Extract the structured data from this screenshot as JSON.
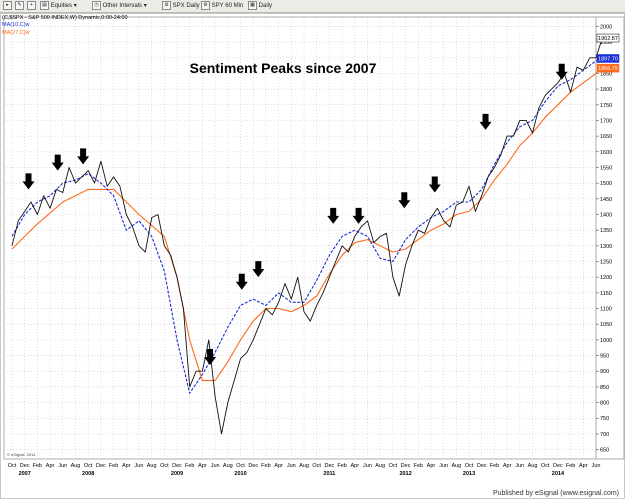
{
  "toolbar": {
    "items": [
      {
        "label": "Equities",
        "icon": "folder-icon"
      },
      {
        "label": "Other Intervals",
        "icon": "clock-icon"
      },
      {
        "label": "SPX Daily",
        "icon": "gear-icon"
      },
      {
        "label": "SPY 60 Min",
        "icon": "gear-icon"
      },
      {
        "label": "Daily",
        "icon": "calendar-icon"
      }
    ]
  },
  "legend": {
    "symbol": "(C,$SPX - S&P 500 INDEX,W) Dynamic,0:00-24:00",
    "ma1": "MA(10,C)w",
    "ma2": "MA(27,C)w"
  },
  "footer": {
    "published": "Published by eSignal (www.esignal.com)",
    "copyright": "© eSignal, 2014"
  },
  "colors": {
    "price": "#111111",
    "ma_fast": "#1a2fd6",
    "ma_slow": "#ff6a1a",
    "grid": "#c9c9c9",
    "marker": "#000000"
  },
  "chart_data": {
    "type": "line",
    "title": "Sentiment Peaks since 2007",
    "y_ticks": [
      650,
      700,
      750,
      800,
      850,
      900,
      950,
      1000,
      1050,
      1100,
      1150,
      1200,
      1250,
      1300,
      1350,
      1400,
      1450,
      1500,
      1550,
      1600,
      1650,
      1700,
      1750,
      1800,
      1850,
      1900,
      1950,
      2000
    ],
    "ylim": [
      620,
      2030
    ],
    "x_month_labels": [
      "Oct",
      "Dec",
      "Feb",
      "Apr",
      "Jun",
      "Aug",
      "Oct",
      "Dec",
      "Feb",
      "Apr",
      "Jun",
      "Aug",
      "Oct",
      "Dec",
      "Feb",
      "Apr",
      "Jun",
      "Aug",
      "Oct",
      "Dec",
      "Feb",
      "Apr",
      "Jun",
      "Aug",
      "Oct",
      "Dec",
      "Feb",
      "Apr",
      "Jun",
      "Aug",
      "Oct",
      "Dec",
      "Feb",
      "Apr",
      "Jun",
      "Aug",
      "Oct",
      "Dec",
      "Feb",
      "Apr",
      "Jun",
      "Aug",
      "Oct",
      "Dec",
      "Feb",
      "Apr",
      "Jun"
    ],
    "x_year_labels": [
      {
        "label": "2007",
        "month_index": 1
      },
      {
        "label": "2008",
        "month_index": 6
      },
      {
        "label": "2009",
        "month_index": 13
      },
      {
        "label": "2010",
        "month_index": 18
      },
      {
        "label": "2011",
        "month_index": 25
      },
      {
        "label": "2012",
        "month_index": 31
      },
      {
        "label": "2013",
        "month_index": 36
      },
      {
        "label": "2014",
        "month_index": 43
      }
    ],
    "last_values": {
      "price": "1962.87",
      "ma_fast": "1897.70",
      "ma_slow": "1866.75"
    },
    "series": [
      {
        "name": "$SPX",
        "style": "price",
        "x": [
          0,
          0.5,
          1,
          1.5,
          2,
          2.5,
          3,
          3.5,
          4,
          4.5,
          5,
          5.5,
          6,
          6.5,
          7,
          7.5,
          8,
          8.5,
          9,
          9.5,
          10,
          10.5,
          11,
          11.5,
          12,
          12.5,
          13,
          13.5,
          14,
          14.5,
          15,
          15.5,
          16,
          16.5,
          17,
          17.5,
          18,
          18.5,
          19,
          19.5,
          20,
          20.5,
          21,
          21.5,
          22,
          22.5,
          23,
          23.5,
          24,
          24.5,
          25,
          25.5,
          26,
          26.5,
          27,
          27.5,
          28,
          28.5,
          29,
          29.5,
          30,
          30.5,
          31,
          31.5,
          32,
          32.5,
          33,
          33.5,
          34,
          34.5,
          35,
          35.5,
          36,
          36.5,
          37,
          37.5,
          38,
          38.5,
          39,
          39.5,
          40,
          40.5,
          41,
          41.5,
          42,
          42.5,
          43,
          43.5,
          44,
          44.5,
          45,
          45.5,
          46,
          46.5
        ],
        "values": [
          1300,
          1380,
          1410,
          1440,
          1400,
          1460,
          1420,
          1480,
          1470,
          1550,
          1500,
          1520,
          1540,
          1500,
          1570,
          1490,
          1520,
          1490,
          1400,
          1360,
          1300,
          1280,
          1390,
          1400,
          1300,
          1270,
          1200,
          1100,
          850,
          900,
          900,
          1000,
          820,
          700,
          800,
          870,
          940,
          960,
          1000,
          1050,
          1100,
          1080,
          1120,
          1180,
          1130,
          1200,
          1090,
          1060,
          1110,
          1150,
          1200,
          1250,
          1300,
          1280,
          1330,
          1360,
          1380,
          1310,
          1330,
          1340,
          1200,
          1140,
          1240,
          1300,
          1350,
          1340,
          1390,
          1420,
          1380,
          1360,
          1430,
          1440,
          1490,
          1410,
          1460,
          1520,
          1550,
          1590,
          1650,
          1650,
          1700,
          1700,
          1660,
          1740,
          1780,
          1800,
          1820,
          1850,
          1790,
          1870,
          1860,
          1900,
          1900,
          1962.87
        ]
      },
      {
        "name": "MA(10,C)w",
        "style": "ma_fast",
        "x": [
          0,
          1,
          2,
          3,
          4,
          5,
          6,
          7,
          8,
          9,
          10,
          11,
          12,
          13,
          14,
          15,
          16,
          17,
          18,
          19,
          20,
          21,
          22,
          23,
          24,
          25,
          26,
          27,
          28,
          29,
          30,
          31,
          32,
          33,
          34,
          35,
          36,
          37,
          38,
          39,
          40,
          41,
          42,
          43,
          44,
          45,
          46,
          46.5
        ],
        "values": [
          1330,
          1400,
          1440,
          1460,
          1500,
          1510,
          1530,
          1500,
          1460,
          1350,
          1380,
          1330,
          1220,
          1000,
          830,
          890,
          960,
          1040,
          1110,
          1130,
          1110,
          1150,
          1120,
          1120,
          1190,
          1270,
          1330,
          1350,
          1330,
          1260,
          1250,
          1320,
          1360,
          1390,
          1410,
          1440,
          1440,
          1480,
          1560,
          1630,
          1680,
          1700,
          1760,
          1810,
          1830,
          1860,
          1890,
          1897.7
        ]
      },
      {
        "name": "MA(27,C)w",
        "style": "ma_slow",
        "x": [
          0,
          2,
          4,
          6,
          8,
          10,
          12,
          13,
          14,
          15,
          16,
          17,
          18,
          19,
          20,
          21,
          22,
          23,
          24,
          25,
          26,
          27,
          28,
          29,
          30,
          31,
          32,
          33,
          34,
          35,
          36,
          37,
          38,
          39,
          40,
          41,
          42,
          43,
          44,
          45,
          46,
          46.5
        ],
        "values": [
          1290,
          1370,
          1440,
          1480,
          1480,
          1400,
          1330,
          1200,
          1000,
          870,
          870,
          930,
          1000,
          1060,
          1100,
          1100,
          1090,
          1110,
          1140,
          1210,
          1270,
          1310,
          1320,
          1300,
          1280,
          1290,
          1320,
          1350,
          1370,
          1400,
          1410,
          1450,
          1510,
          1560,
          1620,
          1660,
          1710,
          1750,
          1790,
          1820,
          1850,
          1866.75
        ]
      }
    ],
    "markers": [
      {
        "x": 1.3,
        "y": 1480
      },
      {
        "x": 3.6,
        "y": 1540
      },
      {
        "x": 5.6,
        "y": 1560
      },
      {
        "x": 15.6,
        "y": 920
      },
      {
        "x": 18.1,
        "y": 1160
      },
      {
        "x": 19.4,
        "y": 1200
      },
      {
        "x": 25.3,
        "y": 1370
      },
      {
        "x": 27.3,
        "y": 1370
      },
      {
        "x": 30.9,
        "y": 1420
      },
      {
        "x": 33.3,
        "y": 1470
      },
      {
        "x": 37.3,
        "y": 1670
      },
      {
        "x": 43.3,
        "y": 1830
      }
    ]
  }
}
